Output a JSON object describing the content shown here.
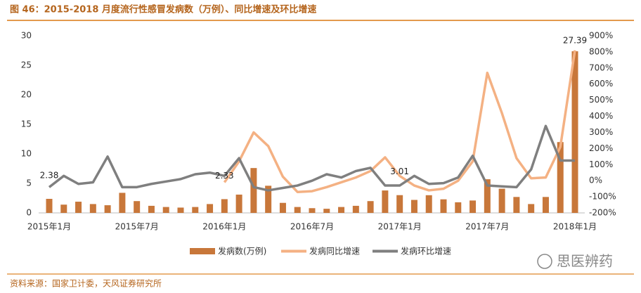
{
  "header": {
    "title": "图 46：2015-2018 月度流行性感冒发病数（万例）、同比增速及环比增速"
  },
  "chart_data": {
    "type": "bar-line",
    "categories": [
      "2015年1月",
      null,
      null,
      null,
      null,
      null,
      "2015年7月",
      null,
      null,
      null,
      null,
      null,
      "2016年1月",
      null,
      null,
      null,
      null,
      null,
      "2016年7月",
      null,
      null,
      null,
      null,
      null,
      "2017年1月",
      null,
      null,
      null,
      null,
      null,
      "2017年7月",
      null,
      null,
      null,
      null,
      null,
      "2018年1月"
    ],
    "series": [
      {
        "name": "发病数(万例)",
        "type": "bar",
        "color": "#c8773a",
        "values": [
          2.38,
          1.4,
          1.9,
          1.5,
          1.3,
          3.4,
          2.0,
          1.2,
          1.0,
          0.9,
          1.0,
          1.5,
          2.33,
          3.1,
          7.6,
          4.6,
          1.7,
          1.0,
          0.8,
          0.7,
          1.0,
          1.2,
          2.0,
          3.8,
          3.01,
          2.2,
          3.0,
          2.3,
          1.8,
          2.1,
          5.7,
          4.1,
          2.7,
          1.5,
          2.7,
          12.0,
          27.39
        ],
        "value_labels": [
          "2.38",
          null,
          null,
          null,
          null,
          null,
          null,
          null,
          null,
          null,
          null,
          null,
          "2.33",
          null,
          null,
          null,
          null,
          null,
          null,
          null,
          null,
          null,
          null,
          null,
          "3.01",
          null,
          null,
          null,
          null,
          null,
          null,
          null,
          null,
          null,
          null,
          null,
          "27.39"
        ]
      },
      {
        "name": "发病同比增速",
        "type": "line",
        "axis": "y2",
        "color": "#f4b183",
        "values": [
          null,
          null,
          null,
          null,
          null,
          null,
          null,
          null,
          null,
          null,
          null,
          null,
          -10,
          120,
          300,
          215,
          25,
          -70,
          -65,
          -40,
          -10,
          20,
          60,
          145,
          30,
          -30,
          -60,
          -50,
          0,
          120,
          670,
          420,
          140,
          15,
          20,
          210,
          810
        ]
      },
      {
        "name": "发病环比增速",
        "type": "line",
        "axis": "y2",
        "color": "#7f7f7f",
        "values": [
          -40,
          30,
          -20,
          -10,
          150,
          -40,
          -40,
          -20,
          -5,
          10,
          40,
          50,
          30,
          140,
          -40,
          -60,
          -45,
          -30,
          0,
          40,
          20,
          60,
          80,
          -30,
          -30,
          30,
          -20,
          -15,
          20,
          155,
          -30,
          -35,
          -40,
          70,
          340,
          125,
          125
        ]
      }
    ],
    "ylim": [
      0,
      30
    ],
    "yticks": [
      0,
      5,
      10,
      15,
      20,
      25,
      30
    ],
    "y2lim": [
      -200,
      900
    ],
    "y2ticks": [
      {
        "value": -200,
        "label": "-200%"
      },
      {
        "value": -100,
        "label": "-100%"
      },
      {
        "value": 0,
        "label": "0%"
      },
      {
        "value": 100,
        "label": "100%"
      },
      {
        "value": 200,
        "label": "200%"
      },
      {
        "value": 300,
        "label": "300%"
      },
      {
        "value": 400,
        "label": "400%"
      },
      {
        "value": 500,
        "label": "500%"
      },
      {
        "value": 600,
        "label": "600%"
      },
      {
        "value": 700,
        "label": "700%"
      },
      {
        "value": 800,
        "label": "800%"
      },
      {
        "value": 900,
        "label": "900%"
      }
    ],
    "legend": "bottom"
  },
  "footer": {
    "source": "资料来源：国家卫计委，天风证券研究所",
    "watermark": "思医辨药"
  }
}
